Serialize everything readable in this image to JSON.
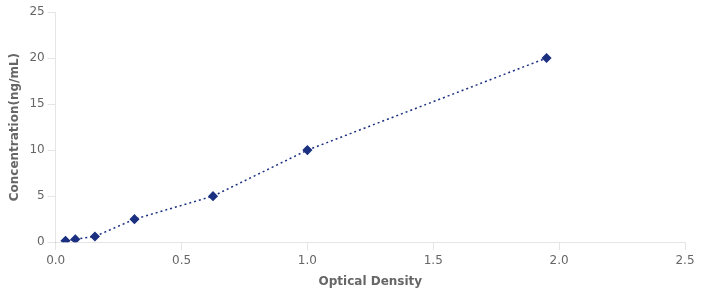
{
  "chart_data": {
    "type": "line",
    "x": [
      0.039,
      0.078,
      0.156,
      0.313,
      0.625,
      1.0,
      1.95
    ],
    "values": [
      0.156,
      0.313,
      0.625,
      2.5,
      5.0,
      10.0,
      20.0
    ],
    "color": "#1B3080",
    "marker": "diamond",
    "line_style": "dotted",
    "xlabel": "Optical Density",
    "ylabel": "Concentration(ng/mL)",
    "xlim": [
      0,
      2.5
    ],
    "ylim": [
      0,
      25
    ],
    "xticks": [
      {
        "value": 0,
        "label": "0.0"
      },
      0.5,
      {
        "value": 1.0,
        "label": "1.0"
      },
      1.5,
      {
        "value": 2.0,
        "label": "2.0"
      },
      2.5
    ],
    "yticks": [
      0,
      5,
      10,
      15,
      20,
      25
    ],
    "grid": false
  }
}
